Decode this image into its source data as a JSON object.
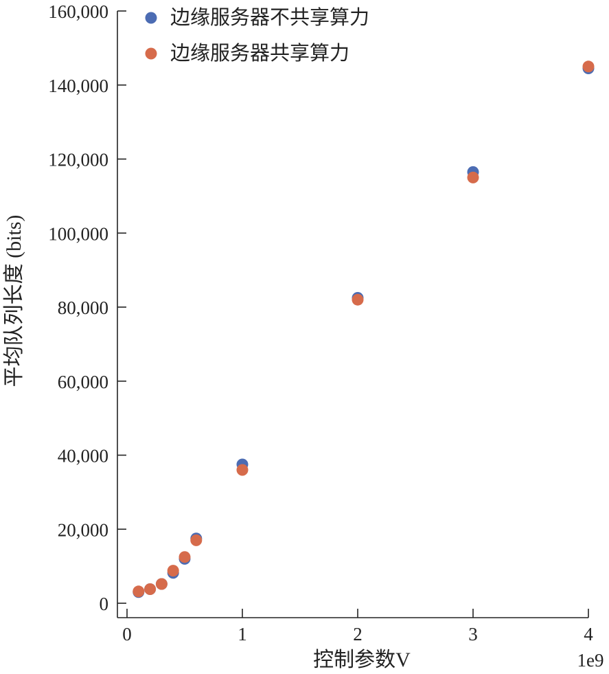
{
  "chart_data": {
    "type": "scatter",
    "xlabel": "控制参数V",
    "ylabel": "平均队列长度 (bits)",
    "x_offset_label": "1e9",
    "xlim": [
      -0.08,
      4.0
    ],
    "ylim": [
      -4000,
      160000
    ],
    "x_ticks": [
      0,
      1,
      2,
      3,
      4
    ],
    "x_tick_labels": [
      "0",
      "1",
      "2",
      "3",
      "4"
    ],
    "y_ticks": [
      0,
      20000,
      40000,
      60000,
      80000,
      100000,
      120000,
      140000,
      160000
    ],
    "y_tick_labels": [
      "0",
      "20,000",
      "40,000",
      "60,000",
      "80,000",
      "100,000",
      "120,000",
      "140,000",
      "160,000"
    ],
    "grid": false,
    "legend_position": "top-left",
    "series": [
      {
        "name": "边缘服务器不共享算力",
        "color": "#4C6CB3",
        "x": [
          0.1,
          0.2,
          0.3,
          0.4,
          0.5,
          0.6,
          1,
          2,
          3,
          4
        ],
        "y": [
          3000,
          3800,
          5200,
          8200,
          12000,
          17500,
          37500,
          82500,
          116500,
          144500
        ]
      },
      {
        "name": "边缘服务器共享算力",
        "color": "#D66B4B",
        "x": [
          0.1,
          0.2,
          0.3,
          0.4,
          0.5,
          0.6,
          1,
          2,
          3,
          4
        ],
        "y": [
          3200,
          3800,
          5200,
          8800,
          12500,
          17000,
          36000,
          82000,
          115000,
          145000
        ]
      }
    ]
  }
}
